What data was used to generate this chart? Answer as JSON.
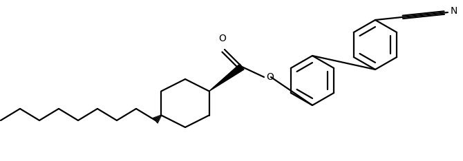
{
  "bg_color": "#ffffff",
  "line_color": "#000000",
  "line_width": 1.6,
  "fig_width": 6.7,
  "fig_height": 2.34,
  "dpi": 100,
  "xlim": [
    0,
    670
  ],
  "ylim": [
    0,
    234
  ]
}
